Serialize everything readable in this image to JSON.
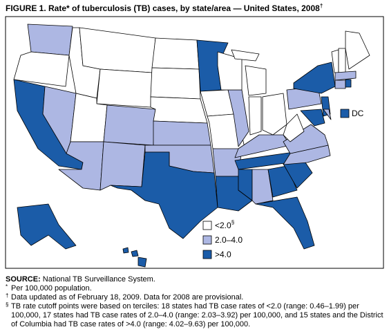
{
  "title": "FIGURE 1. Rate* of tuberculosis (TB) cases, by state/area — United States, 2008",
  "title_mark": "†",
  "legend": [
    {
      "label": "<2.0",
      "mark": "§",
      "color": "#ffffff"
    },
    {
      "label": "2.0–4.0",
      "color": "#adb7e3"
    },
    {
      "label": ">4.0",
      "color": "#1b5ca8"
    }
  ],
  "dc_label": "DC",
  "notes": {
    "source_label": "SOURCE:",
    "source": "National TB Surveillance System.",
    "items": [
      {
        "mark": "*",
        "text": "Per 100,000 population."
      },
      {
        "mark": "†",
        "text": "Data updated as of February 18, 2009. Data for 2008 are provisional."
      },
      {
        "mark": "§",
        "text": "TB rate cutoff points were based on terciles: 18 states had TB case rates of <2.0 (range: 0.46–1.99) per 100,000, 17 states had TB case rates of 2.0–4.0 (range: 2.03–3.92) per 100,000, and 15 states and the District of Columbia had TB case rates of >4.0 (range: 4.02–9.63) per 100,000."
      }
    ]
  }
}
